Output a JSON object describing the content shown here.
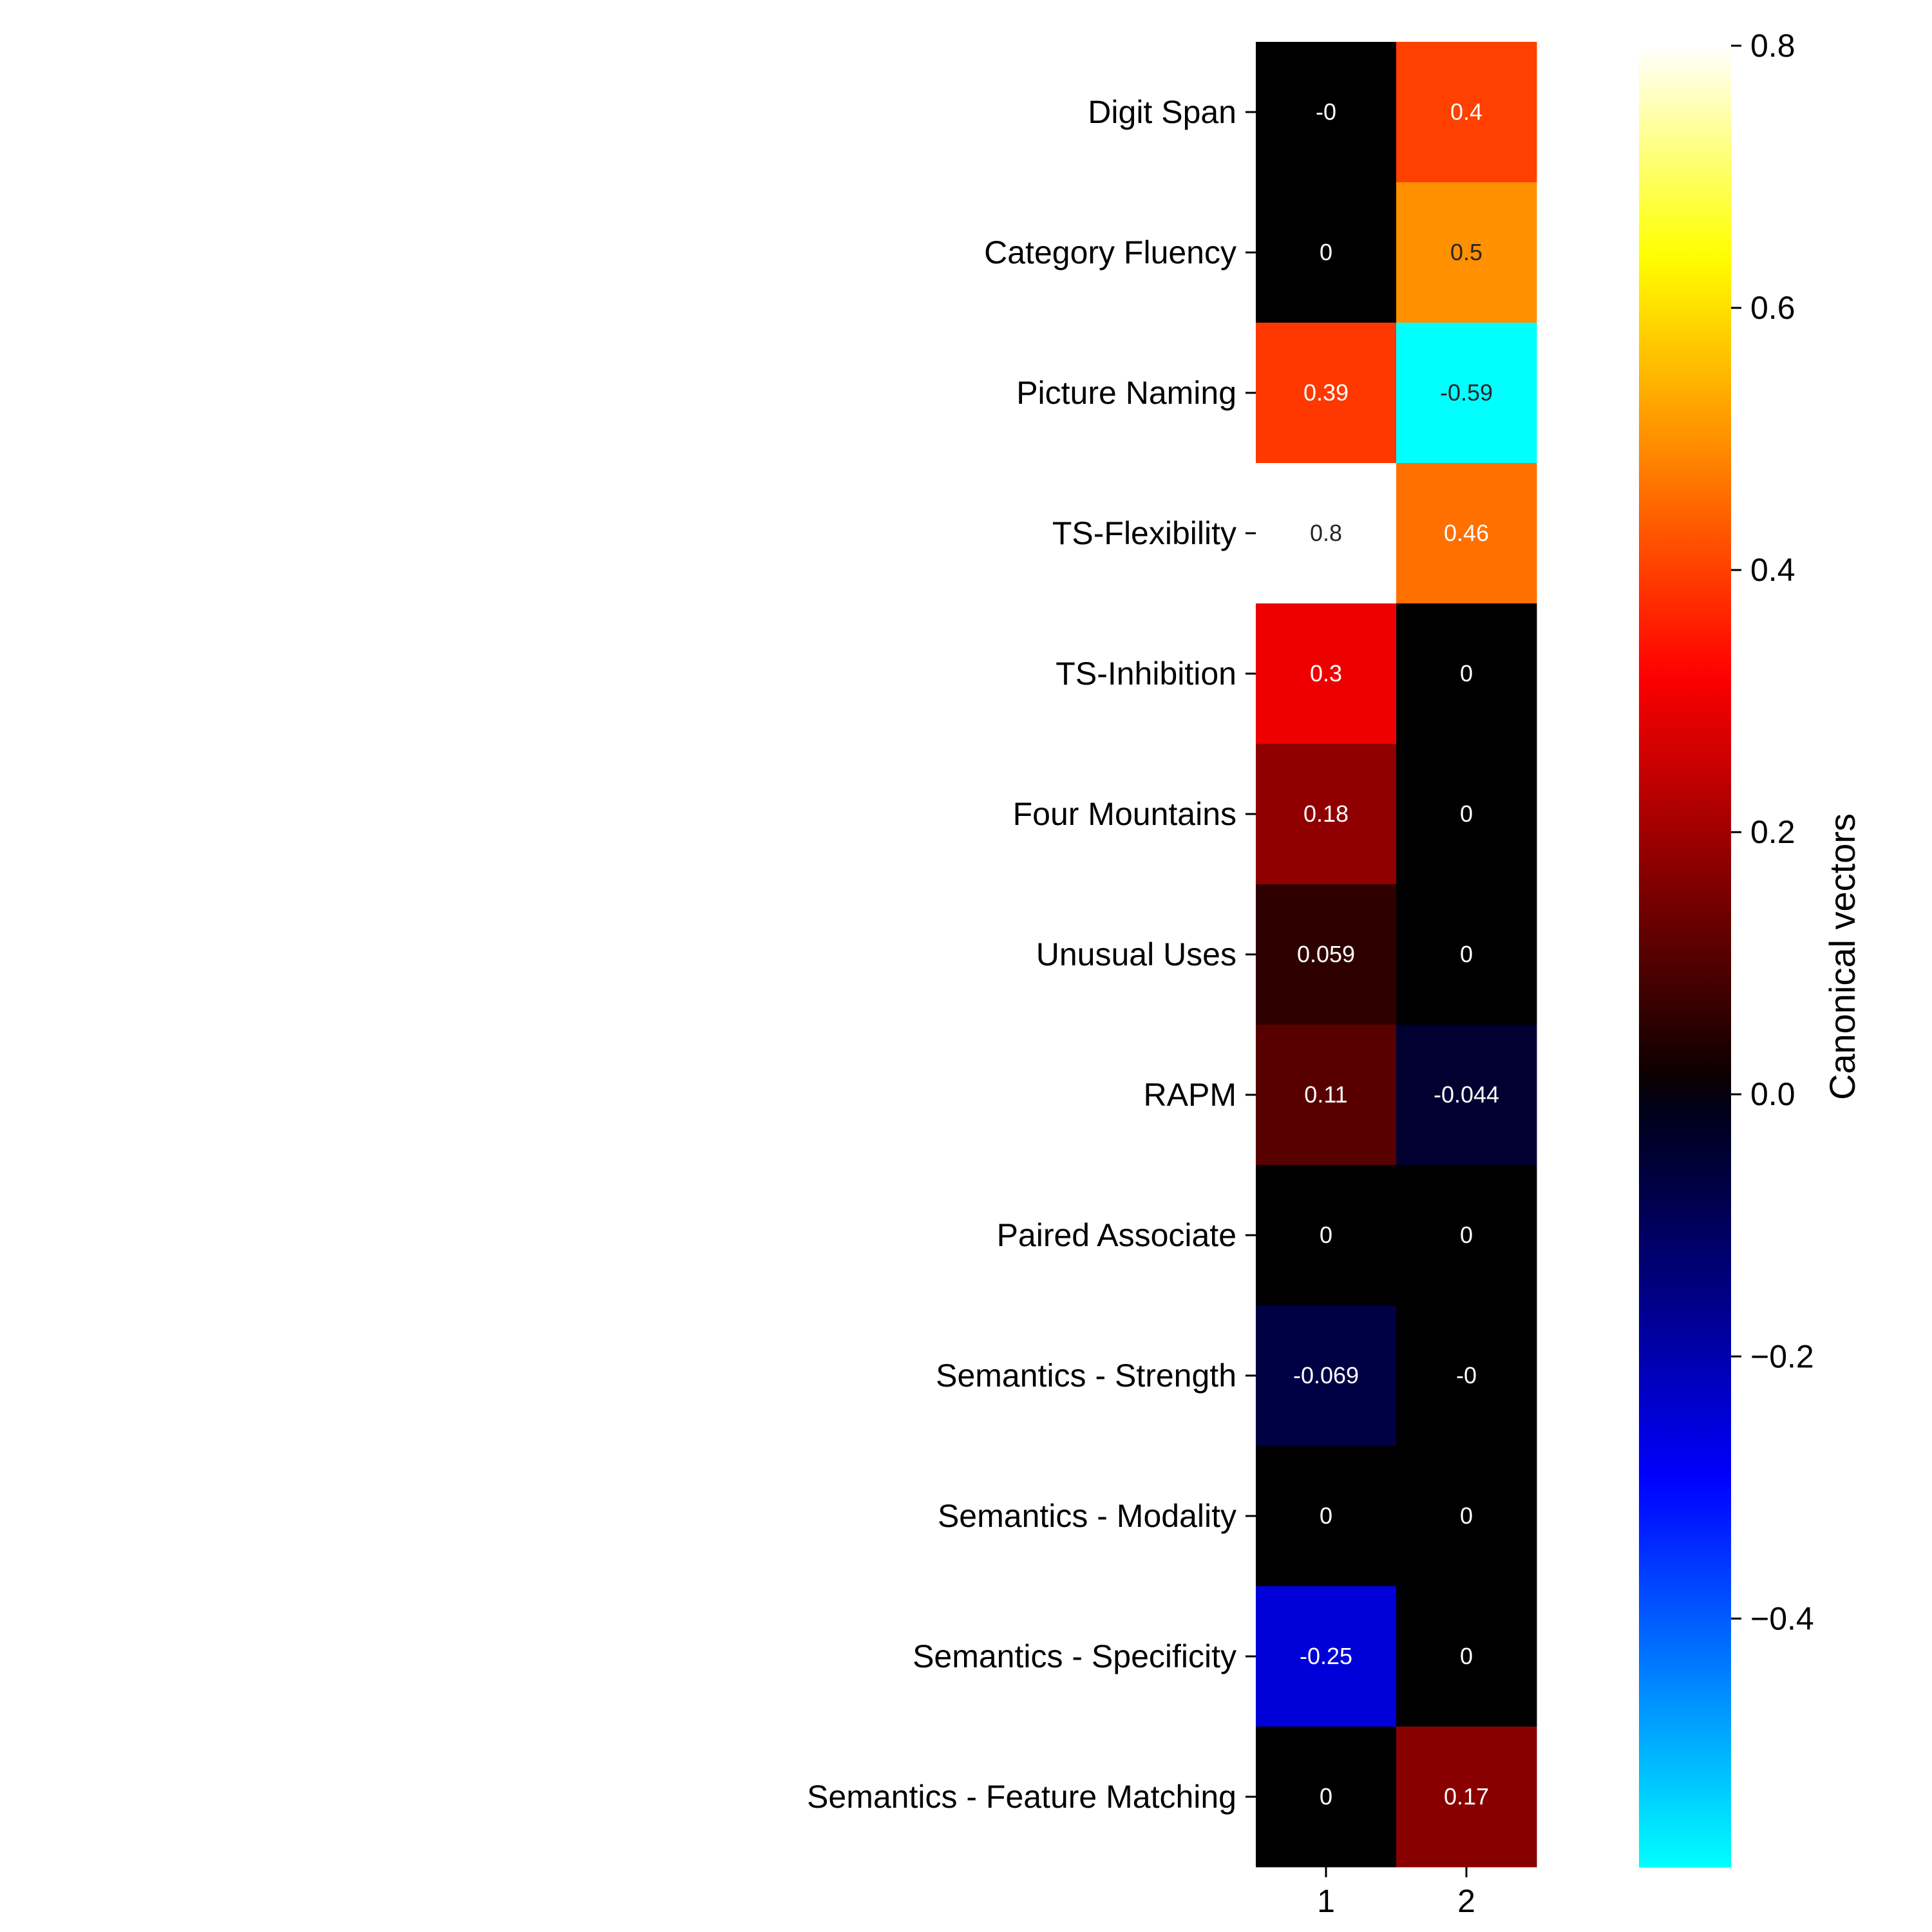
{
  "chart_data": {
    "type": "heatmap",
    "rows": [
      "Digit Span",
      "Category Fluency",
      "Picture Naming",
      "TS-Flexibility",
      "TS-Inhibition",
      "Four Mountains",
      "Unusual Uses",
      "RAPM",
      "Paired Associate",
      "Semantics - Strength",
      "Semantics - Modality",
      "Semantics - Specificity",
      "Semantics - Feature Matching"
    ],
    "columns": [
      "1",
      "2"
    ],
    "values": [
      [
        -0.0,
        0.4
      ],
      [
        0.0,
        0.5
      ],
      [
        0.39,
        -0.59
      ],
      [
        0.8,
        0.46
      ],
      [
        0.3,
        0.0
      ],
      [
        0.18,
        0.0
      ],
      [
        0.059,
        0.0
      ],
      [
        0.11,
        -0.044
      ],
      [
        0.0,
        0.0
      ],
      [
        -0.069,
        -0.0
      ],
      [
        0.0,
        0.0
      ],
      [
        -0.25,
        0.0
      ],
      [
        0.0,
        0.17
      ]
    ],
    "annotations": [
      [
        "-0",
        "0.4"
      ],
      [
        "0",
        "0.5"
      ],
      [
        "0.39",
        "-0.59"
      ],
      [
        "0.8",
        "0.46"
      ],
      [
        "0.3",
        "0"
      ],
      [
        "0.18",
        "0"
      ],
      [
        "0.059",
        "0"
      ],
      [
        "0.11",
        "-0.044"
      ],
      [
        "0",
        "0"
      ],
      [
        "-0.069",
        "-0"
      ],
      [
        "0",
        "0"
      ],
      [
        "-0.25",
        "0"
      ],
      [
        "0",
        "0.17"
      ]
    ],
    "colorbar": {
      "label": "Canonical vectors",
      "vmin": -0.59,
      "vmax": 0.8,
      "ticks": [
        0.8,
        0.6,
        0.4,
        0.2,
        0.0,
        -0.2,
        -0.4
      ],
      "tick_labels": [
        "0.8",
        "0.6",
        "0.4",
        "0.2",
        "0.0",
        "−0.2",
        "−0.4"
      ]
    },
    "colormap": {
      "negative": [
        "#00ffff",
        "#0080ff",
        "#0000ff",
        "#000080",
        "#000010"
      ],
      "positive": [
        "#000000",
        "#800000",
        "#ff0000",
        "#ff8000",
        "#ffff00",
        "#ffffff"
      ]
    }
  }
}
